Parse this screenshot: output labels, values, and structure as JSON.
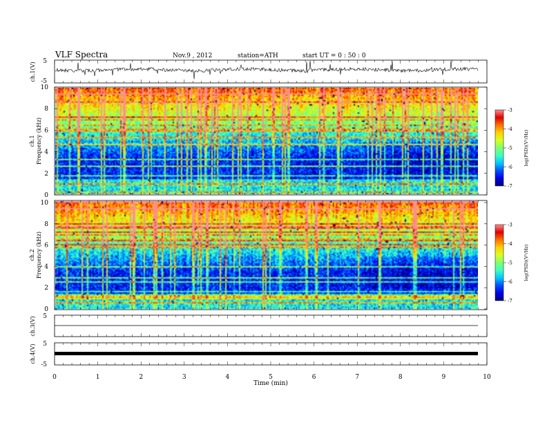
{
  "header": {
    "title": "VLF  Spectra",
    "date": "Nov.9  , 2012",
    "station": "station=ATH",
    "start": "start  UT  =   0 : 50 : 0"
  },
  "colors": {
    "colormap": [
      "#00007a",
      "#0000e8",
      "#0050ff",
      "#00c8ff",
      "#40ffbf",
      "#80ff70",
      "#d8ff20",
      "#ffd000",
      "#ff7000",
      "#e00000",
      "#ff9090"
    ],
    "trace": "#000000"
  },
  "chart_data": [
    {
      "id": "ch1-waveform",
      "type": "line",
      "ylabel": "ch.1(V)",
      "ylim": [
        -5,
        5
      ],
      "yticks": [
        "5",
        "-5"
      ],
      "xlim": [
        0,
        10
      ],
      "series": [
        {
          "description_level": 0.0,
          "description_spread": 1.0
        }
      ]
    },
    {
      "id": "ch1-spectrogram",
      "type": "heatmap",
      "ylabel_line1": "ch.1",
      "ylabel_line2": "Frequency  (kHz)",
      "ylim": [
        0,
        10
      ],
      "yticks": [
        "0",
        "2",
        "4",
        "6",
        "8",
        "10"
      ],
      "xlim": [
        0,
        9.8
      ],
      "colorbar": {
        "label": "log(PSD)(V²/Hz)",
        "range": [
          -7,
          -3
        ],
        "ticks": [
          "-3",
          "-4",
          "-5",
          "-6",
          "-7"
        ]
      }
    },
    {
      "id": "ch2-spectrogram",
      "type": "heatmap",
      "ylabel_line1": "ch.2",
      "ylabel_line2": "Frequency  (kHz)",
      "ylim": [
        0,
        10
      ],
      "yticks": [
        "0",
        "2",
        "4",
        "6",
        "8",
        "10"
      ],
      "xlim": [
        0,
        9.8
      ],
      "colorbar": {
        "label": "log(PSD)(V²/Hz)",
        "range": [
          -7,
          -3
        ],
        "ticks": [
          "-3",
          "-4",
          "-5",
          "-6",
          "-7"
        ]
      }
    },
    {
      "id": "ch3-waveform",
      "type": "line",
      "ylabel": "ch.3(V)",
      "ylim": [
        -5,
        5
      ],
      "yticks": [
        "5"
      ],
      "xlim": [
        0,
        10
      ],
      "series": [
        {
          "level": 0.0
        }
      ]
    },
    {
      "id": "ch4-waveform",
      "type": "line",
      "ylabel": "ch.4(V)",
      "ylim": [
        -5,
        5
      ],
      "yticks": [
        "5",
        "-5"
      ],
      "xlim": [
        0,
        10
      ],
      "series": [
        {
          "level": 0.0
        }
      ],
      "xlabel": "Time  (min)",
      "xticks": [
        "0",
        "1",
        "2",
        "3",
        "4",
        "5",
        "6",
        "7",
        "8",
        "9",
        "10"
      ]
    }
  ]
}
